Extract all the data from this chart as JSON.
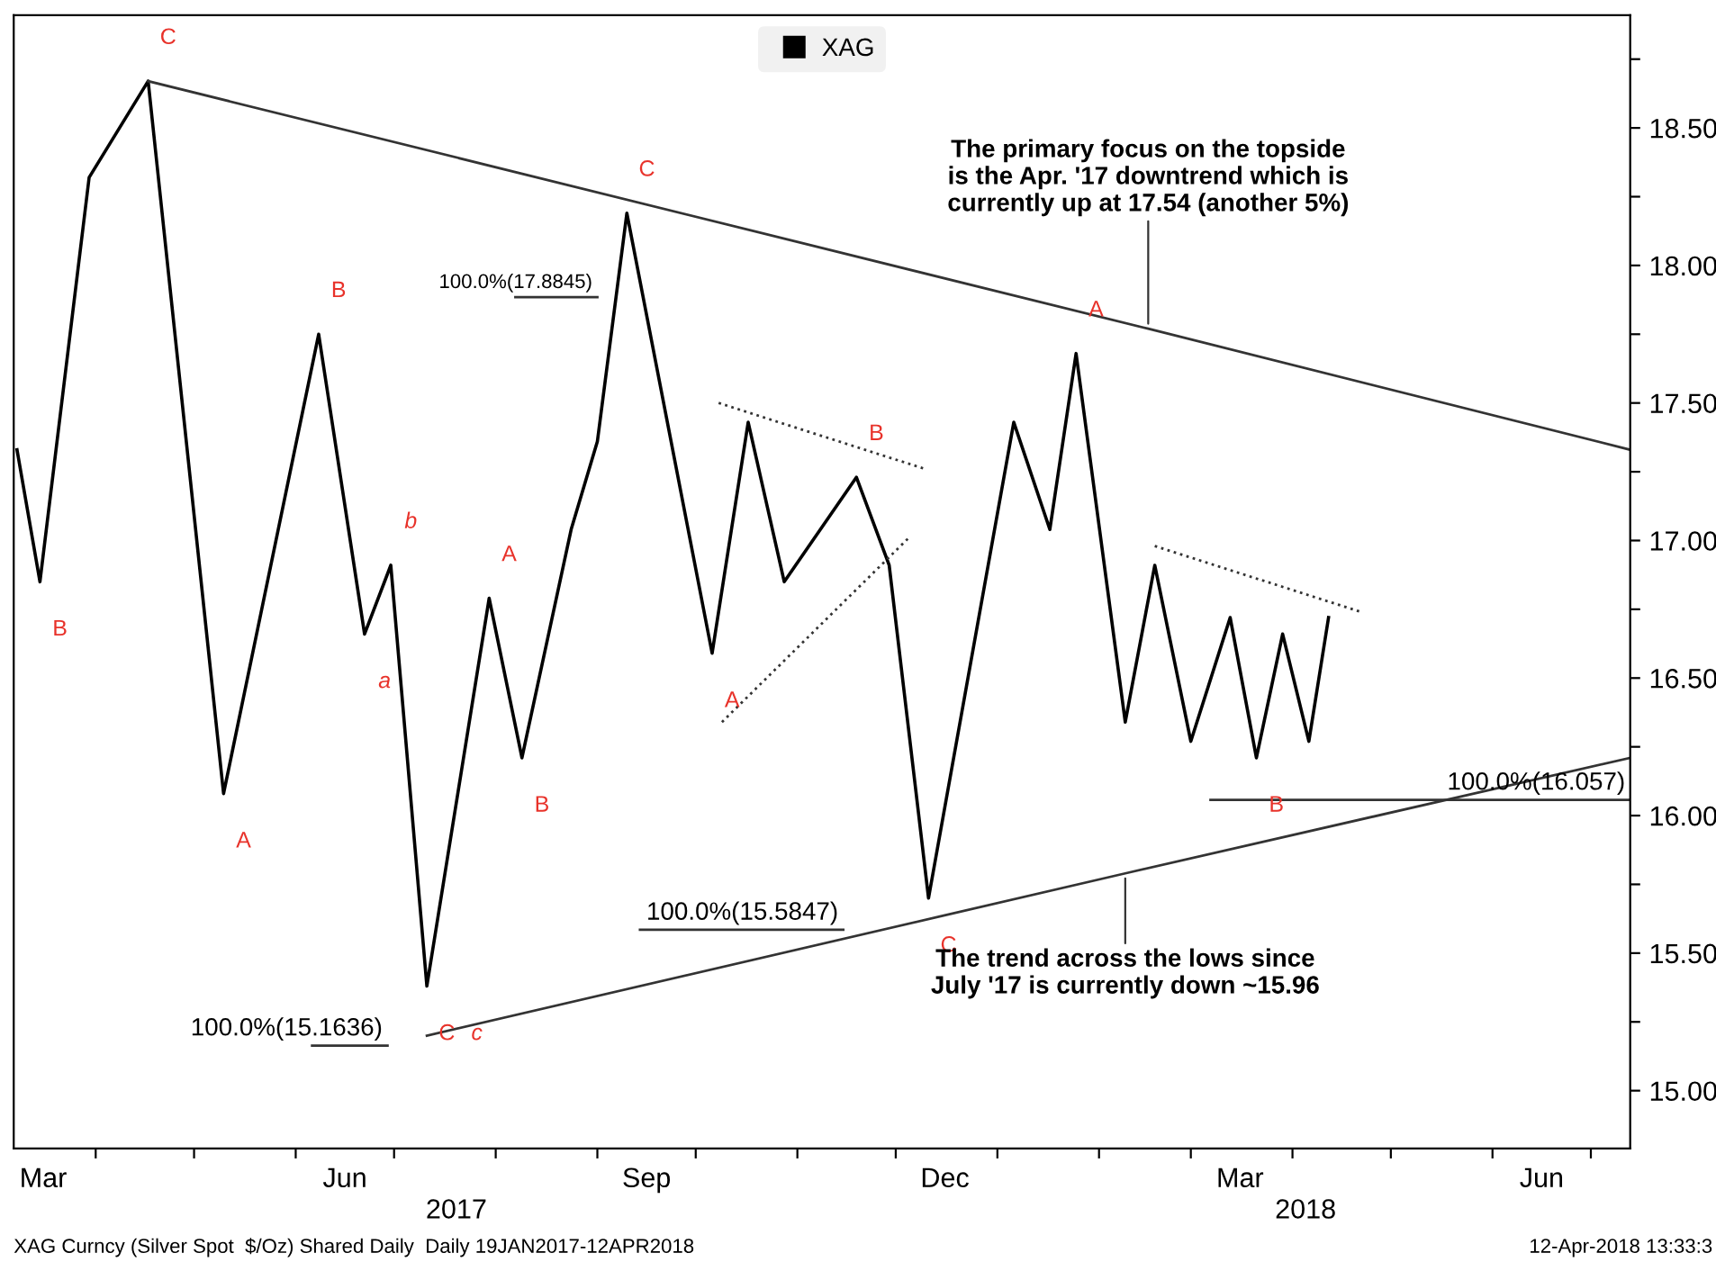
{
  "chart_data": {
    "type": "line",
    "legend": "top",
    "grid": false,
    "xlim": [
      "2017-03-07",
      "2018-07-13"
    ],
    "xticks": [
      {
        "value": "2017-03-16",
        "label": "Mar"
      },
      {
        "value": "2017-04-01",
        "label": null
      },
      {
        "value": "2017-05-01",
        "label": null
      },
      {
        "value": "2017-06-01",
        "label": null
      },
      {
        "value": "2017-06-16",
        "label": "Jun"
      },
      {
        "value": "2017-07-01",
        "label": null
      },
      {
        "value": "2017-08-01",
        "label": null
      },
      {
        "value": "2017-09-01",
        "label": null
      },
      {
        "value": "2017-09-16",
        "label": "Sep"
      },
      {
        "value": "2017-10-01",
        "label": null
      },
      {
        "value": "2017-11-01",
        "label": null
      },
      {
        "value": "2017-12-01",
        "label": null
      },
      {
        "value": "2017-12-16",
        "label": "Dec"
      },
      {
        "value": "2018-01-01",
        "label": null
      },
      {
        "value": "2018-02-01",
        "label": null
      },
      {
        "value": "2018-03-01",
        "label": null
      },
      {
        "value": "2018-03-16",
        "label": "Mar"
      },
      {
        "value": "2018-04-01",
        "label": null
      },
      {
        "value": "2018-05-01",
        "label": null
      },
      {
        "value": "2018-06-01",
        "label": null
      },
      {
        "value": "2018-06-16",
        "label": "Jun"
      },
      {
        "value": "2018-07-01",
        "label": null
      }
    ],
    "x2lim": [
      "2017-03-07",
      "2018-07-13"
    ],
    "x2ticks": [
      {
        "value": "2017-07-20",
        "label": "2017"
      },
      {
        "value": "2018-04-05",
        "label": "2018"
      }
    ],
    "ylim": [
      14.79,
      18.91
    ],
    "yticks": [
      {
        "value": 15.0,
        "label": "15.00"
      },
      {
        "value": 15.25,
        "label": null
      },
      {
        "value": 15.5,
        "label": "15.50"
      },
      {
        "value": 15.75,
        "label": null
      },
      {
        "value": 16.0,
        "label": "16.00"
      },
      {
        "value": 16.25,
        "label": null
      },
      {
        "value": 16.5,
        "label": "16.50"
      },
      {
        "value": 16.75,
        "label": null
      },
      {
        "value": 17.0,
        "label": "17.00"
      },
      {
        "value": 17.25,
        "label": null
      },
      {
        "value": 17.5,
        "label": "17.50"
      },
      {
        "value": 17.75,
        "label": null
      },
      {
        "value": 18.0,
        "label": "18.00"
      },
      {
        "value": 18.25,
        "label": null
      },
      {
        "value": 18.5,
        "label": "18.50"
      },
      {
        "value": 18.75,
        "label": null
      }
    ],
    "series": [
      {
        "name": "XAG",
        "color": "#000000",
        "x": [
          "2017-03-08",
          "2017-03-15",
          "2017-03-30",
          "2017-04-17",
          "2017-05-10",
          "2017-06-08",
          "2017-06-22",
          "2017-06-30",
          "2017-07-11",
          "2017-07-30",
          "2017-08-09",
          "2017-08-24",
          "2017-09-01",
          "2017-09-10",
          "2017-10-06",
          "2017-10-17",
          "2017-10-28",
          "2017-11-19",
          "2017-11-29",
          "2017-12-11",
          "2018-01-06",
          "2018-01-17",
          "2018-01-25",
          "2018-02-09",
          "2018-02-18",
          "2018-03-01",
          "2018-03-13",
          "2018-03-21",
          "2018-03-29",
          "2018-04-06",
          "2018-04-12"
        ],
        "values": [
          17.33,
          16.85,
          18.32,
          18.67,
          16.08,
          17.75,
          16.66,
          16.91,
          15.38,
          16.79,
          16.21,
          17.04,
          17.36,
          18.19,
          16.59,
          17.43,
          16.85,
          17.23,
          16.91,
          15.7,
          17.43,
          17.04,
          17.68,
          16.34,
          16.91,
          16.27,
          16.72,
          16.21,
          16.66,
          16.27,
          16.72
        ]
      },
      {
        "color": "#333333",
        "x": [
          "2017-04-17",
          "2018-02-16",
          "2018-07-13"
        ],
        "values": [
          18.67,
          17.77,
          17.33
        ]
      },
      {
        "color": "#333333",
        "x": [
          "2017-07-11",
          "2018-02-09",
          "2018-07-13"
        ],
        "values": [
          15.2,
          15.79,
          16.21
        ]
      },
      {
        "color": "#333333",
        "x": [
          "2018-03-07",
          "2018-07-13"
        ],
        "values": [
          16.057,
          16.057
        ]
      },
      {
        "color": "#333333",
        "x": [
          "2017-08-07",
          "2017-09-01"
        ],
        "values": [
          17.8845,
          17.8845
        ]
      },
      {
        "color": "#333333",
        "x": [
          "2017-09-14",
          "2017-11-15"
        ],
        "values": [
          15.5847,
          15.5847
        ]
      },
      {
        "color": "#333333",
        "x": [
          "2017-06-06",
          "2017-06-29"
        ],
        "values": [
          15.1636,
          15.1636
        ]
      },
      {
        "color": "#333333",
        "line_style": "dotted",
        "x": [
          "2017-10-08",
          "2017-12-10"
        ],
        "values": [
          17.5,
          17.26
        ]
      },
      {
        "color": "#333333",
        "line_style": "dotted",
        "x": [
          "2017-10-09",
          "2017-12-05"
        ],
        "values": [
          16.34,
          17.01
        ]
      },
      {
        "color": "#333333",
        "line_style": "dotted",
        "x": [
          "2018-02-18",
          "2018-04-22"
        ],
        "values": [
          16.98,
          16.74
        ]
      }
    ],
    "annotations": [
      {
        "text": "C",
        "x": "2017-04-17",
        "y": 18.67
      },
      {
        "text": "B",
        "x": "2017-03-15",
        "y": 16.85
      },
      {
        "text": "B",
        "x": "2017-06-08",
        "y": 17.75
      },
      {
        "text": "A",
        "x": "2017-05-10",
        "y": 16.08
      },
      {
        "text": "a",
        "x": "2017-06-22",
        "y": 16.66
      },
      {
        "text": "b",
        "x": "2017-06-30",
        "y": 16.91
      },
      {
        "text": "A",
        "x": "2017-07-30",
        "y": 16.79
      },
      {
        "text": "B",
        "x": "2017-08-09",
        "y": 16.21
      },
      {
        "text": "C",
        "x": "2017-09-10",
        "y": 18.19
      },
      {
        "text": "C",
        "x": "2017-07-11",
        "y": 15.38
      },
      {
        "text": "c",
        "x": "2017-07-11",
        "y": 15.38
      },
      {
        "text": "A",
        "x": "2017-10-06",
        "y": 16.59
      },
      {
        "text": "B",
        "x": "2017-11-19",
        "y": 17.23
      },
      {
        "text": "C",
        "x": "2017-12-11",
        "y": 15.7
      },
      {
        "text": "A",
        "x": "2018-01-25",
        "y": 17.68
      },
      {
        "text": "B",
        "x": "2018-03-21",
        "y": 16.21
      },
      {
        "text": "100.0%(17.8845)",
        "x": "2017-09-01",
        "y": 17.8845
      },
      {
        "text": "100.0%(15.5847)",
        "x": "2017-11-15",
        "y": 15.5847
      },
      {
        "text": "100.0%(15.1636)",
        "x": "2017-06-29",
        "y": 15.1636
      },
      {
        "text": "100.0%(16.057)",
        "x": "2018-07-13",
        "y": 16.057
      },
      {
        "text": "The primary focus on the topside\nis the Apr. '17 downtrend which is\ncurrently up at 17.54 (another 5%)",
        "x": "2018-02-16",
        "y": 17.77
      },
      {
        "text": "The trend across the lows since\nJuly '17 is currently down ~15.96",
        "x": "2018-02-09",
        "y": 15.79
      },
      "XAG Curncy (Silver Spot  $/Oz) Shared Daily  Daily 19JAN2017-12APR2018",
      "12-Apr-2018 13:33:3"
    ]
  }
}
